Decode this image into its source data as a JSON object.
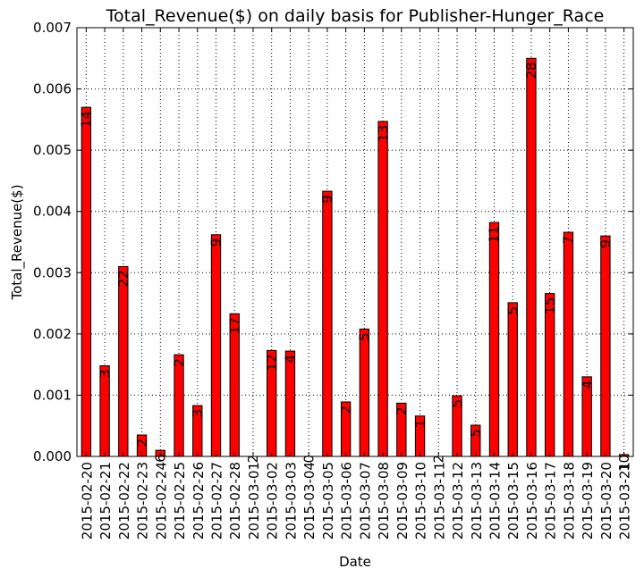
{
  "chart_data": {
    "type": "bar",
    "title": "Total_Revenue($) on daily basis for Publisher-Hunger_Race",
    "xlabel": "Date",
    "ylabel": "Total_Revenue($)",
    "ylim": [
      0,
      0.007
    ],
    "yticks": [
      "0.000",
      "0.001",
      "0.002",
      "0.003",
      "0.004",
      "0.005",
      "0.006",
      "0.007"
    ],
    "grid": true,
    "bar_color": "#ff0000",
    "categories": [
      "2015-02-20",
      "2015-02-21",
      "2015-02-22",
      "2015-02-23",
      "2015-02-24",
      "2015-02-25",
      "2015-02-26",
      "2015-02-27",
      "2015-02-28",
      "2015-03-01",
      "2015-03-02",
      "2015-03-03",
      "2015-03-04",
      "2015-03-05",
      "2015-03-06",
      "2015-03-07",
      "2015-03-08",
      "2015-03-09",
      "2015-03-10",
      "2015-03-11",
      "2015-03-12",
      "2015-03-13",
      "2015-03-14",
      "2015-03-15",
      "2015-03-16",
      "2015-03-17",
      "2015-03-18",
      "2015-03-19",
      "2015-03-20",
      "2015-03-21"
    ],
    "values": [
      0.0057,
      0.00148,
      0.0031,
      0.00035,
      0.0001,
      0.00166,
      0.00083,
      0.00362,
      0.00233,
      0.0,
      0.00173,
      0.00172,
      0.0,
      0.00433,
      0.00089,
      0.00208,
      0.00547,
      0.00087,
      0.00066,
      0.0,
      0.00099,
      0.00051,
      0.00382,
      0.00251,
      0.0065,
      0.00266,
      0.00366,
      0.0013,
      0.0036,
      3e-05
    ],
    "bar_labels": [
      "14",
      "3",
      "22",
      "2",
      "6",
      "2",
      "3",
      "9",
      "17",
      "2",
      "12",
      "4",
      "0",
      "9",
      "2",
      "5",
      "13",
      "2",
      "1",
      "2",
      "5",
      "5",
      "11",
      "5",
      "28",
      "15",
      "7",
      "4",
      "9",
      "10"
    ]
  }
}
